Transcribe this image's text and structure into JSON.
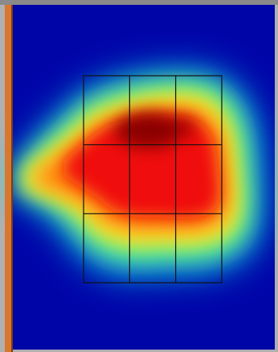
{
  "colors": {
    "background": "#0005a8",
    "border_left": "#d9772f",
    "border_top": "#8a8a8a",
    "border_outer": "#b0b0b0",
    "grid_line": "#111111"
  },
  "heatmap": {
    "colormap": "jet",
    "grid": {
      "rows": 3,
      "cols": 3
    }
  }
}
